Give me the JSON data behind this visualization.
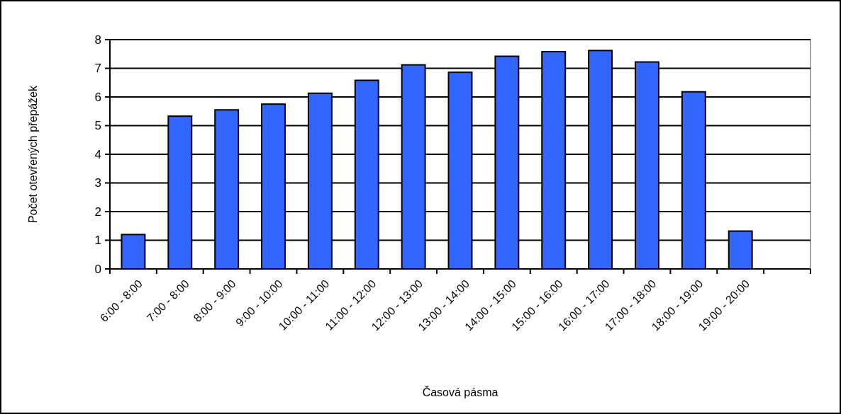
{
  "chart_data": {
    "type": "bar",
    "xlabel": "Časová pásma",
    "ylabel": "Počet otevřených přepážek",
    "categories": [
      "6:00 - 8:00",
      "7:00 - 8:00",
      "8:00 - 9:00",
      "9:00 - 10:00",
      "10:00 - 11:00",
      "11:00 - 12:00",
      "12:00 - 13:00",
      "13:00 - 14:00",
      "14:00 - 15:00",
      "15:00 - 16:00",
      "16:00 - 17:00",
      "17:00 - 18:00",
      "18:00 - 19:00",
      "19:00 - 20:00",
      null
    ],
    "values": [
      1.2,
      5.33,
      5.55,
      5.75,
      6.13,
      6.58,
      7.12,
      6.86,
      7.42,
      7.58,
      7.62,
      7.22,
      6.18,
      1.32,
      null
    ],
    "color": "#3366ff",
    "ylim": [
      0,
      8
    ],
    "yticks": [
      0,
      1,
      2,
      3,
      4,
      5,
      6,
      7,
      8
    ],
    "grid": "y"
  }
}
